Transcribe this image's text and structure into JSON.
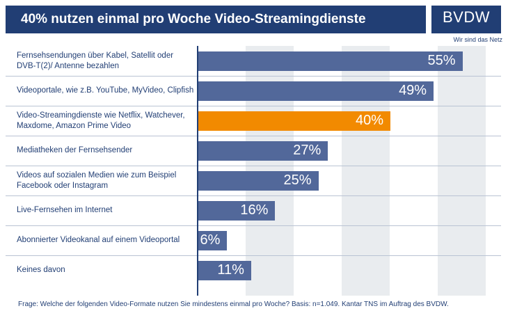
{
  "header": {
    "title": "40% nutzen einmal pro Woche Video-Streamingdienste",
    "logo_text": "BVDW",
    "logo_tagline": "Wir sind das Netz"
  },
  "chart_data": {
    "type": "bar",
    "orientation": "horizontal",
    "title": "40% nutzen einmal pro Woche Video-Streamingdienste",
    "categories": [
      "Fernsehsendungen über Kabel, Satellit oder DVB-T(2)/ Antenne bezahlen",
      "Videoportale, wie z.B. YouTube, MyVideo, Clipfish",
      "Video-Streamingdienste wie Netflix, Watchever, Maxdome, Amazon Prime Video",
      "Mediatheken der Fernsehsender",
      "Videos auf sozialen Medien wie zum Beispiel Facebook oder Instagram",
      "Live-Fernsehen im Internet",
      "Abonnierter Videokanal auf einem Videoportal",
      "Keines davon"
    ],
    "values": [
      55,
      49,
      40,
      27,
      25,
      16,
      6,
      11
    ],
    "value_labels": [
      "55%",
      "49%",
      "40%",
      "27%",
      "25%",
      "16%",
      "6%",
      "11%"
    ],
    "highlight_index": 2,
    "xlim": [
      0,
      60
    ],
    "grid": true,
    "colors": {
      "bar": "#52689a",
      "highlight": "#f28a00",
      "band": "#e9ecef",
      "navy": "#213e74"
    }
  },
  "footer": {
    "note": "Frage: Welche der folgenden Video-Formate nutzen Sie mindestens einmal pro Woche? Basis: n=1.049. Kantar TNS im Auftrag des BVDW."
  }
}
